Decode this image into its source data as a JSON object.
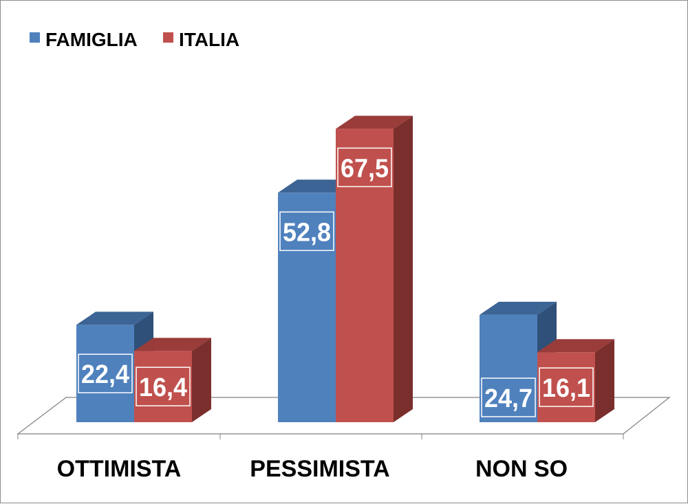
{
  "chart_data": {
    "type": "bar",
    "style": "3d-clustered-column",
    "categories": [
      "OTTIMISTA",
      "PESSIMISTA",
      "NON SO"
    ],
    "series": [
      {
        "name": "FAMIGLIA",
        "values": [
          22.4,
          52.8,
          24.7
        ],
        "labels": [
          "22,4",
          "52,8",
          "24,7"
        ]
      },
      {
        "name": "ITALIA",
        "values": [
          16.4,
          67.5,
          16.1
        ],
        "labels": [
          "16,4",
          "67,5",
          "16,1"
        ]
      }
    ],
    "ylim": [
      0,
      70
    ],
    "grid": false,
    "legend": "top-left",
    "colors": {
      "FAMIGLIA": {
        "front": "#4f81bd",
        "top": "#3c6494",
        "side": "#2f5078"
      },
      "ITALIA": {
        "front": "#c0504d",
        "top": "#993c3a",
        "side": "#7b2f2d"
      },
      "floor": "#808080"
    }
  }
}
